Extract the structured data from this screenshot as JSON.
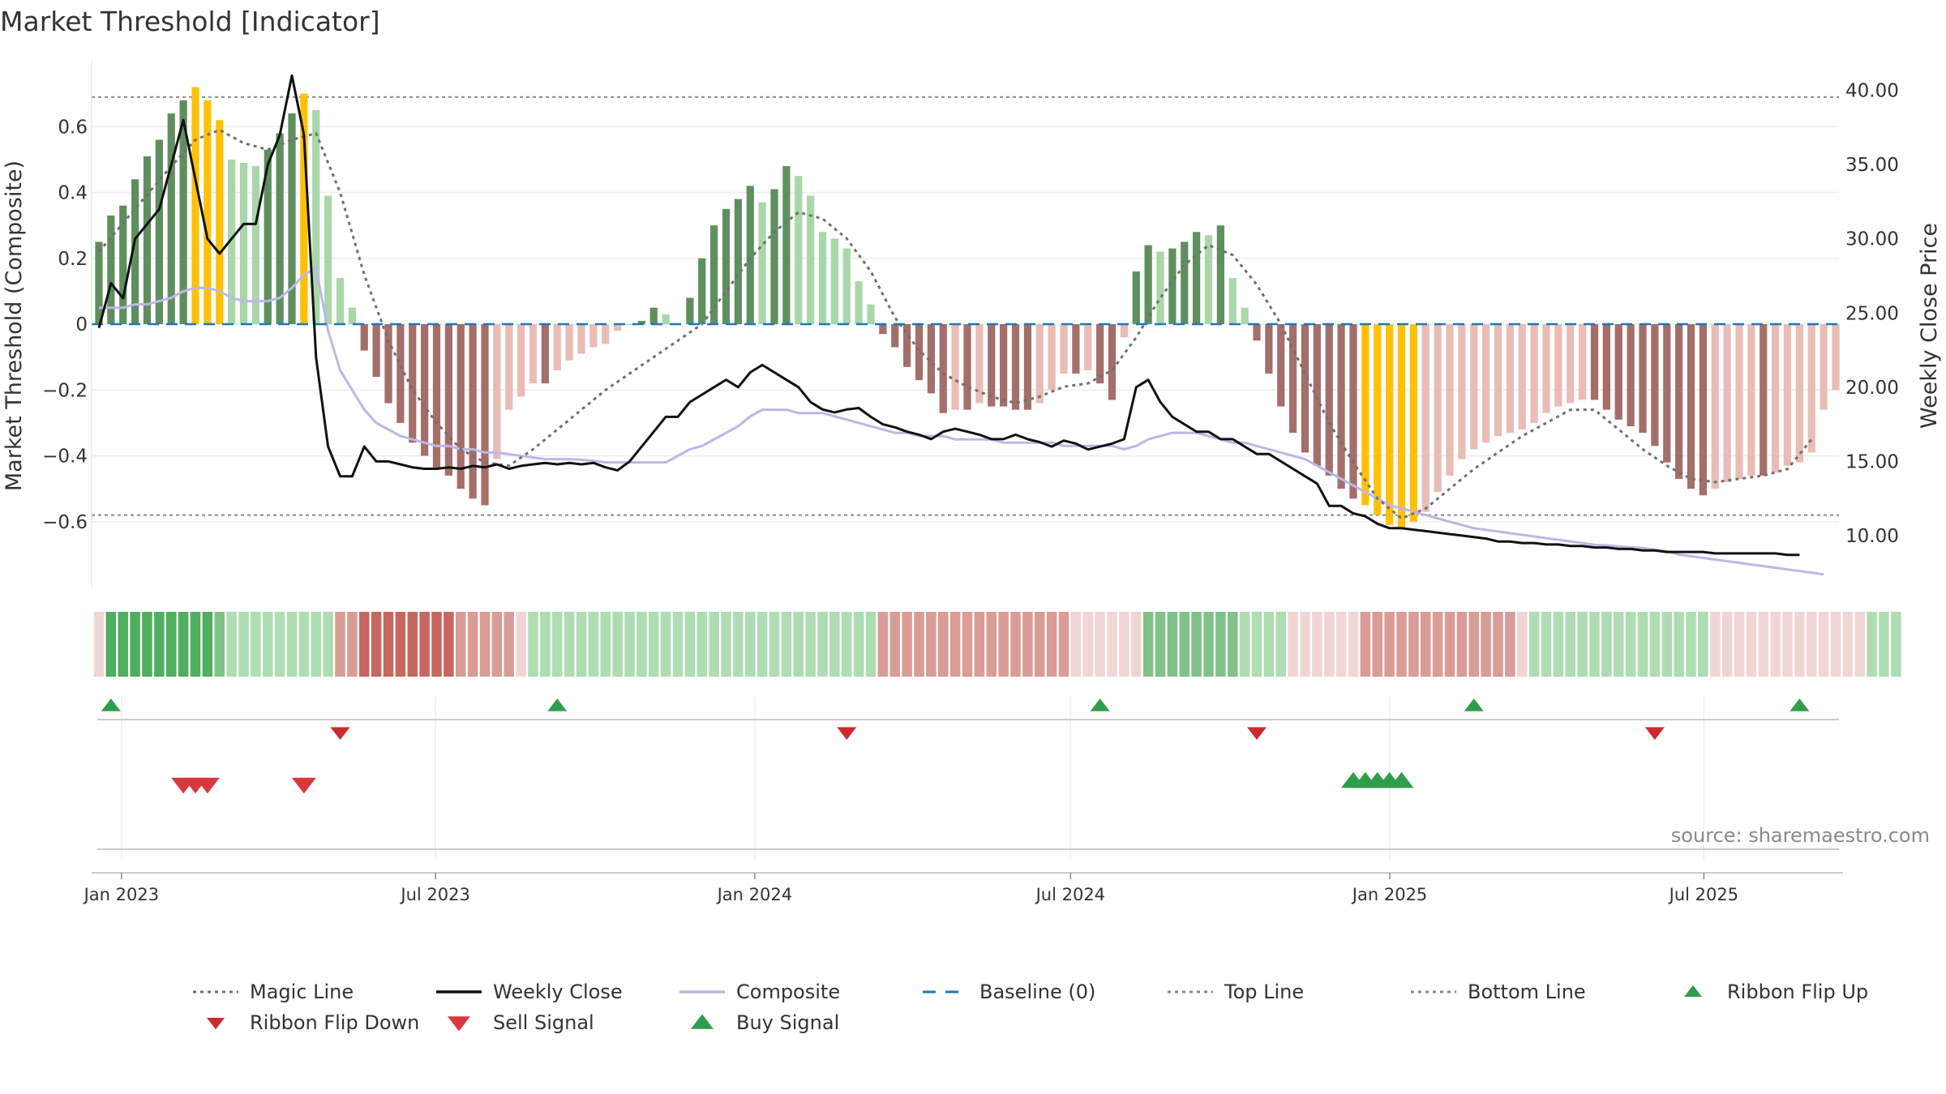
{
  "title": "Market Threshold [Indicator]",
  "source_note": "source: sharemaestro.com",
  "colors": {
    "bull_strong": "#5f8f5f",
    "bull_light": "#a9d7a9",
    "bear_strong": "#a46e6a",
    "bear_light": "#e9bcb6",
    "extreme": "#ffc107",
    "magic": "#707070",
    "close": "#111111",
    "composite": "#bdb7e6",
    "baseline": "#1f77b4",
    "guide": "#888888",
    "up_marker": "#2e9e4a",
    "down_marker": "#d9383f"
  },
  "chart_data": {
    "type": "bar",
    "left_axis": {
      "label": "Market Threshold (Composite)",
      "ylim": [
        -0.8,
        0.8
      ],
      "ticks": [
        0.6,
        0.4,
        0.2,
        0,
        -0.2,
        -0.4,
        -0.6
      ],
      "tick_labels": [
        "0.6",
        "0.4",
        "0.2",
        "0",
        "−0.2",
        "−0.4",
        "−0.6"
      ]
    },
    "right_axis": {
      "label": "Weekly Close Price",
      "ylim": [
        6.5,
        42
      ],
      "ticks": [
        40,
        35,
        30,
        25,
        20,
        15,
        10
      ],
      "tick_labels": [
        "40.00",
        "35.00",
        "30.00",
        "25.00",
        "20.00",
        "15.00",
        "10.00"
      ]
    },
    "x_axis": {
      "start": "2022-12-19",
      "end": "2025-09-15",
      "ticks": [
        "2023-01-01",
        "2023-07-01",
        "2024-01-01",
        "2024-07-01",
        "2025-01-01",
        "2025-07-01"
      ],
      "tick_labels": [
        "Jan 2023",
        "Jul 2023",
        "Jan 2024",
        "Jul 2024",
        "Jan 2025",
        "Jul 2025"
      ]
    },
    "top_line": 0.69,
    "bottom_line": -0.58,
    "bar_values": [
      0.25,
      0.33,
      0.36,
      0.44,
      0.51,
      0.56,
      0.64,
      0.68,
      0.72,
      0.68,
      0.62,
      0.5,
      0.49,
      0.48,
      0.53,
      0.58,
      0.64,
      0.7,
      0.65,
      0.39,
      0.14,
      0.05,
      -0.08,
      -0.16,
      -0.24,
      -0.3,
      -0.36,
      -0.4,
      -0.44,
      -0.46,
      -0.5,
      -0.53,
      -0.55,
      -0.41,
      -0.26,
      -0.22,
      -0.18,
      -0.18,
      -0.14,
      -0.11,
      -0.09,
      -0.07,
      -0.06,
      -0.02,
      0.0,
      0.01,
      0.05,
      0.03,
      0.0,
      0.08,
      0.2,
      0.3,
      0.35,
      0.38,
      0.42,
      0.37,
      0.41,
      0.48,
      0.45,
      0.39,
      0.28,
      0.26,
      0.23,
      0.13,
      0.06,
      -0.03,
      -0.07,
      -0.13,
      -0.17,
      -0.21,
      -0.27,
      -0.26,
      -0.26,
      -0.24,
      -0.25,
      -0.25,
      -0.26,
      -0.26,
      -0.24,
      -0.2,
      -0.15,
      -0.15,
      -0.14,
      -0.18,
      -0.23,
      -0.04,
      0.16,
      0.24,
      0.22,
      0.23,
      0.25,
      0.28,
      0.27,
      0.3,
      0.14,
      0.05,
      -0.05,
      -0.15,
      -0.25,
      -0.33,
      -0.39,
      -0.43,
      -0.46,
      -0.5,
      -0.53,
      -0.55,
      -0.58,
      -0.61,
      -0.62,
      -0.6,
      -0.57,
      -0.51,
      -0.46,
      -0.41,
      -0.38,
      -0.36,
      -0.34,
      -0.33,
      -0.32,
      -0.3,
      -0.27,
      -0.25,
      -0.24,
      -0.23,
      -0.23,
      -0.26,
      -0.29,
      -0.31,
      -0.33,
      -0.37,
      -0.42,
      -0.47,
      -0.5,
      -0.52,
      -0.5,
      -0.48,
      -0.47,
      -0.46,
      -0.46,
      -0.45,
      -0.43,
      -0.42,
      -0.39,
      -0.26,
      -0.2
    ],
    "extreme_bars": [
      8,
      9,
      10,
      17,
      105,
      106,
      107,
      108,
      109
    ],
    "close_price": [
      24,
      27,
      26,
      30,
      31,
      32,
      35,
      38,
      34,
      30,
      29,
      30,
      31,
      31,
      35,
      37,
      41,
      37,
      22,
      16,
      14,
      14,
      16,
      15,
      15,
      14.8,
      14.6,
      14.5,
      14.5,
      14.6,
      14.5,
      14.7,
      14.6,
      14.8,
      14.5,
      14.7,
      14.8,
      14.9,
      14.8,
      14.9,
      14.8,
      14.9,
      14.6,
      14.4,
      15,
      16,
      17,
      18,
      18,
      19,
      19.5,
      20,
      20.5,
      20,
      21,
      21.5,
      21,
      20.5,
      20,
      19,
      18.5,
      18.3,
      18.5,
      18.6,
      18,
      17.5,
      17.3,
      17,
      16.8,
      16.5,
      17,
      17.2,
      17,
      16.8,
      16.5,
      16.5,
      16.8,
      16.5,
      16.3,
      16,
      16.4,
      16.2,
      15.8,
      16,
      16.2,
      16.5,
      20,
      20.5,
      19,
      18,
      17.5,
      17,
      17,
      16.5,
      16.5,
      16,
      15.5,
      15.5,
      15,
      14.5,
      14,
      13.5,
      12,
      12,
      11.5,
      11.3,
      10.8,
      10.5,
      10.5,
      10.4,
      10.3,
      10.2,
      10.1,
      10.0,
      9.9,
      9.8,
      9.6,
      9.6,
      9.5,
      9.5,
      9.4,
      9.4,
      9.3,
      9.3,
      9.2,
      9.2,
      9.1,
      9.1,
      9.0,
      9.0,
      8.9,
      8.9,
      8.9,
      8.9,
      8.8,
      8.8,
      8.8,
      8.8,
      8.8,
      8.8,
      8.7,
      8.7
    ],
    "composite_values": [
      0.05,
      0.05,
      0.05,
      0.06,
      0.06,
      0.07,
      0.08,
      0.1,
      0.11,
      0.11,
      0.1,
      0.08,
      0.07,
      0.07,
      0.07,
      0.08,
      0.11,
      0.15,
      0.17,
      -0.02,
      -0.14,
      -0.2,
      -0.26,
      -0.3,
      -0.32,
      -0.34,
      -0.35,
      -0.36,
      -0.37,
      -0.37,
      -0.38,
      -0.38,
      -0.39,
      -0.39,
      -0.395,
      -0.4,
      -0.405,
      -0.41,
      -0.41,
      -0.41,
      -0.412,
      -0.415,
      -0.42,
      -0.42,
      -0.42,
      -0.42,
      -0.42,
      -0.42,
      -0.4,
      -0.38,
      -0.37,
      -0.35,
      -0.33,
      -0.31,
      -0.28,
      -0.26,
      -0.26,
      -0.26,
      -0.27,
      -0.27,
      -0.27,
      -0.28,
      -0.29,
      -0.3,
      -0.31,
      -0.32,
      -0.33,
      -0.33,
      -0.34,
      -0.34,
      -0.34,
      -0.35,
      -0.35,
      -0.35,
      -0.35,
      -0.36,
      -0.36,
      -0.36,
      -0.36,
      -0.36,
      -0.37,
      -0.37,
      -0.37,
      -0.37,
      -0.37,
      -0.38,
      -0.37,
      -0.35,
      -0.34,
      -0.33,
      -0.33,
      -0.33,
      -0.34,
      -0.35,
      -0.36,
      -0.36,
      -0.37,
      -0.38,
      -0.39,
      -0.4,
      -0.41,
      -0.43,
      -0.45,
      -0.47,
      -0.49,
      -0.51,
      -0.53,
      -0.55,
      -0.56,
      -0.57,
      -0.58,
      -0.59,
      -0.6,
      -0.61,
      -0.62,
      -0.625,
      -0.63,
      -0.635,
      -0.64,
      -0.645,
      -0.65,
      -0.655,
      -0.66,
      -0.665,
      -0.67,
      -0.672,
      -0.675,
      -0.678,
      -0.68,
      -0.685,
      -0.69,
      -0.7,
      -0.705,
      -0.71,
      -0.715,
      -0.72,
      -0.725,
      -0.73,
      -0.735,
      -0.74,
      -0.745,
      -0.75,
      -0.755,
      -0.76
    ],
    "magic_points": [
      [
        0,
        0.22
      ],
      [
        3,
        0.35
      ],
      [
        6,
        0.48
      ],
      [
        8,
        0.56
      ],
      [
        10,
        0.59
      ],
      [
        12,
        0.55
      ],
      [
        14,
        0.53
      ],
      [
        16,
        0.56
      ],
      [
        18,
        0.58
      ],
      [
        20,
        0.4
      ],
      [
        22,
        0.15
      ],
      [
        24,
        -0.05
      ],
      [
        26,
        -0.2
      ],
      [
        28,
        -0.3
      ],
      [
        30,
        -0.38
      ],
      [
        32,
        -0.42
      ],
      [
        34,
        -0.43
      ],
      [
        36,
        -0.38
      ],
      [
        38,
        -0.32
      ],
      [
        40,
        -0.26
      ],
      [
        42,
        -0.2
      ],
      [
        44,
        -0.15
      ],
      [
        46,
        -0.1
      ],
      [
        48,
        -0.05
      ],
      [
        50,
        0.0
      ],
      [
        52,
        0.1
      ],
      [
        54,
        0.2
      ],
      [
        56,
        0.28
      ],
      [
        58,
        0.34
      ],
      [
        60,
        0.32
      ],
      [
        62,
        0.26
      ],
      [
        64,
        0.16
      ],
      [
        66,
        0.02
      ],
      [
        68,
        -0.08
      ],
      [
        70,
        -0.15
      ],
      [
        72,
        -0.19
      ],
      [
        74,
        -0.22
      ],
      [
        76,
        -0.24
      ],
      [
        78,
        -0.22
      ],
      [
        80,
        -0.19
      ],
      [
        82,
        -0.18
      ],
      [
        84,
        -0.14
      ],
      [
        86,
        -0.04
      ],
      [
        88,
        0.08
      ],
      [
        90,
        0.18
      ],
      [
        92,
        0.24
      ],
      [
        94,
        0.21
      ],
      [
        96,
        0.12
      ],
      [
        98,
        0.0
      ],
      [
        100,
        -0.15
      ],
      [
        102,
        -0.3
      ],
      [
        104,
        -0.42
      ],
      [
        106,
        -0.53
      ],
      [
        108,
        -0.59
      ],
      [
        110,
        -0.56
      ],
      [
        112,
        -0.5
      ],
      [
        114,
        -0.44
      ],
      [
        116,
        -0.39
      ],
      [
        118,
        -0.34
      ],
      [
        120,
        -0.3
      ],
      [
        122,
        -0.26
      ],
      [
        124,
        -0.26
      ],
      [
        126,
        -0.32
      ],
      [
        128,
        -0.38
      ],
      [
        130,
        -0.43
      ],
      [
        132,
        -0.47
      ],
      [
        134,
        -0.48
      ],
      [
        136,
        -0.47
      ],
      [
        138,
        -0.46
      ],
      [
        140,
        -0.44
      ],
      [
        142,
        -0.35
      ]
    ],
    "ribbon_levels": [
      -1,
      3,
      3,
      3,
      3,
      3,
      3,
      3,
      3,
      3,
      2,
      1,
      1,
      1,
      1,
      1,
      1,
      1,
      1,
      1,
      -2,
      -2,
      -3,
      -3,
      -3,
      -3,
      -3,
      -3,
      -3,
      -3,
      -2,
      -2,
      -2,
      -2,
      -2,
      -1,
      1,
      1,
      1,
      1,
      1,
      1,
      1,
      1,
      1,
      1,
      1,
      1,
      1,
      1,
      1,
      1,
      1,
      1,
      1,
      1,
      1,
      1,
      1,
      1,
      1,
      1,
      1,
      1,
      1,
      -2,
      -2,
      -2,
      -2,
      -2,
      -2,
      -2,
      -2,
      -2,
      -2,
      -2,
      -2,
      -2,
      -2,
      -2,
      -2,
      -1,
      -1,
      -1,
      -1,
      -1,
      -1,
      2,
      2,
      2,
      2,
      2,
      2,
      2,
      2,
      1,
      1,
      1,
      1,
      -1,
      -1,
      -1,
      -1,
      -1,
      -1,
      -2,
      -2,
      -2,
      -2,
      -2,
      -2,
      -2,
      -2,
      -2,
      -2,
      -2,
      -2,
      -2,
      -1,
      1,
      1,
      1,
      1,
      1,
      1,
      1,
      1,
      1,
      1,
      1,
      1,
      1,
      1,
      1,
      -1,
      -1,
      -1,
      -1,
      -1,
      -1,
      -1,
      -1,
      -1,
      -1,
      -1,
      -1,
      -1,
      1,
      1,
      1
    ],
    "ribbon_flip_up": [
      1,
      38,
      83,
      114,
      141
    ],
    "ribbon_flip_down": [
      20,
      62,
      96,
      129
    ],
    "sell_signal": [
      7,
      8,
      9,
      17
    ],
    "buy_signal": [
      104,
      105,
      106,
      107,
      108
    ]
  },
  "legend": [
    {
      "label": "Magic Line",
      "kind": "dotted",
      "color": "#707070"
    },
    {
      "label": "Weekly Close",
      "kind": "solid",
      "color": "#111111"
    },
    {
      "label": "Composite",
      "kind": "solid",
      "color": "#bdb7e6"
    },
    {
      "label": "Baseline (0)",
      "kind": "dashed",
      "color": "#1f77b4"
    },
    {
      "label": "Top Line",
      "kind": "dotted",
      "color": "#888888"
    },
    {
      "label": "Bottom Line",
      "kind": "dotted",
      "color": "#888888"
    },
    {
      "label": "Ribbon Flip Up",
      "kind": "tri-up-small",
      "color": "#2e9e4a"
    },
    {
      "label": "Ribbon Flip Down",
      "kind": "tri-down-small",
      "color": "#cc2a2a"
    },
    {
      "label": "Sell Signal",
      "kind": "tri-down",
      "color": "#d9383f"
    },
    {
      "label": "Buy Signal",
      "kind": "tri-up",
      "color": "#2e9e4a"
    }
  ]
}
